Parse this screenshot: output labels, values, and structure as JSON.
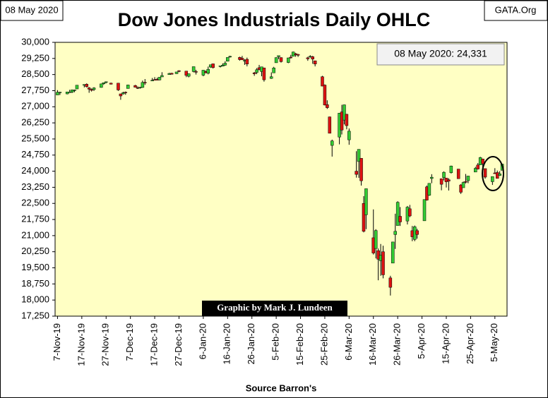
{
  "chart_data": {
    "type": "candlestick",
    "title": "Dow Jones Industrials Daily OHLC",
    "date_box": "08 May 2020",
    "site": "GATA.Org",
    "value_note": "08 May 2020: 24,331",
    "credit": "Graphic by Mark J. Lundeen",
    "xlabel": "Source Barron's",
    "up_color": "#33cc33",
    "down_color": "#dd1111",
    "background": "#ffffc4",
    "grid": false,
    "xlim": [
      "2019-11-06",
      "2020-05-10"
    ],
    "xticks": [
      {
        "value": "2019-11-07",
        "label": "7-Nov-19"
      },
      {
        "value": "2019-11-17",
        "label": "17-Nov-19"
      },
      {
        "value": "2019-11-27",
        "label": "27-Nov-19"
      },
      {
        "value": "2019-12-07",
        "label": "7-Dec-19"
      },
      {
        "value": "2019-12-17",
        "label": "17-Dec-19"
      },
      {
        "value": "2019-12-27",
        "label": "27-Dec-19"
      },
      {
        "value": "2020-01-06",
        "label": "6-Jan-20"
      },
      {
        "value": "2020-01-16",
        "label": "16-Jan-20"
      },
      {
        "value": "2020-01-26",
        "label": "26-Jan-20"
      },
      {
        "value": "2020-02-05",
        "label": "5-Feb-20"
      },
      {
        "value": "2020-02-15",
        "label": "15-Feb-20"
      },
      {
        "value": "2020-02-25",
        "label": "25-Feb-20"
      },
      {
        "value": "2020-03-06",
        "label": "6-Mar-20"
      },
      {
        "value": "2020-03-16",
        "label": "16-Mar-20"
      },
      {
        "value": "2020-03-26",
        "label": "26-Mar-20"
      },
      {
        "value": "2020-04-05",
        "label": "5-Apr-20"
      },
      {
        "value": "2020-04-15",
        "label": "15-Apr-20"
      },
      {
        "value": "2020-04-25",
        "label": "25-Apr-20"
      },
      {
        "value": "2020-05-05",
        "label": "5-May-20"
      }
    ],
    "ylim": [
      17250,
      30000
    ],
    "yticks": [
      {
        "value": 30000,
        "label": "30,000"
      },
      {
        "value": 29250,
        "label": "29,250"
      },
      {
        "value": 28500,
        "label": "28,500"
      },
      {
        "value": 27750,
        "label": "27,750"
      },
      {
        "value": 27000,
        "label": "27,000"
      },
      {
        "value": 26250,
        "label": "26,250"
      },
      {
        "value": 25500,
        "label": "25,500"
      },
      {
        "value": 24750,
        "label": "24,750"
      },
      {
        "value": 24000,
        "label": "24,000"
      },
      {
        "value": 23250,
        "label": "23,250"
      },
      {
        "value": 22500,
        "label": "22,500"
      },
      {
        "value": 21750,
        "label": "21,750"
      },
      {
        "value": 21000,
        "label": "21,000"
      },
      {
        "value": 20250,
        "label": "20,250"
      },
      {
        "value": 19500,
        "label": "19,500"
      },
      {
        "value": 18750,
        "label": "18,750"
      },
      {
        "value": 18000,
        "label": "18,000"
      },
      {
        "value": 17250,
        "label": "17,250"
      }
    ],
    "x": [
      "2019-11-07",
      "2019-11-08",
      "2019-11-11",
      "2019-11-12",
      "2019-11-13",
      "2019-11-14",
      "2019-11-15",
      "2019-11-18",
      "2019-11-19",
      "2019-11-20",
      "2019-11-21",
      "2019-11-22",
      "2019-11-25",
      "2019-11-26",
      "2019-11-27",
      "2019-11-29",
      "2019-12-02",
      "2019-12-03",
      "2019-12-04",
      "2019-12-05",
      "2019-12-06",
      "2019-12-09",
      "2019-12-10",
      "2019-12-11",
      "2019-12-12",
      "2019-12-13",
      "2019-12-16",
      "2019-12-17",
      "2019-12-18",
      "2019-12-19",
      "2019-12-20",
      "2019-12-23",
      "2019-12-24",
      "2019-12-26",
      "2019-12-27",
      "2019-12-30",
      "2019-12-31",
      "2020-01-02",
      "2020-01-03",
      "2020-01-06",
      "2020-01-07",
      "2020-01-08",
      "2020-01-09",
      "2020-01-10",
      "2020-01-13",
      "2020-01-14",
      "2020-01-15",
      "2020-01-16",
      "2020-01-17",
      "2020-01-21",
      "2020-01-22",
      "2020-01-23",
      "2020-01-24",
      "2020-01-27",
      "2020-01-28",
      "2020-01-29",
      "2020-01-30",
      "2020-01-31",
      "2020-02-03",
      "2020-02-04",
      "2020-02-05",
      "2020-02-06",
      "2020-02-07",
      "2020-02-10",
      "2020-02-11",
      "2020-02-12",
      "2020-02-13",
      "2020-02-14",
      "2020-02-18",
      "2020-02-19",
      "2020-02-20",
      "2020-02-21",
      "2020-02-24",
      "2020-02-25",
      "2020-02-26",
      "2020-02-27",
      "2020-02-28",
      "2020-03-02",
      "2020-03-03",
      "2020-03-04",
      "2020-03-05",
      "2020-03-06",
      "2020-03-09",
      "2020-03-10",
      "2020-03-11",
      "2020-03-12",
      "2020-03-13",
      "2020-03-16",
      "2020-03-17",
      "2020-03-18",
      "2020-03-19",
      "2020-03-20",
      "2020-03-23",
      "2020-03-24",
      "2020-03-25",
      "2020-03-26",
      "2020-03-27",
      "2020-03-30",
      "2020-03-31",
      "2020-04-01",
      "2020-04-02",
      "2020-04-03",
      "2020-04-06",
      "2020-04-07",
      "2020-04-08",
      "2020-04-09",
      "2020-04-13",
      "2020-04-14",
      "2020-04-15",
      "2020-04-16",
      "2020-04-17",
      "2020-04-20",
      "2020-04-21",
      "2020-04-22",
      "2020-04-23",
      "2020-04-24",
      "2020-04-27",
      "2020-04-28",
      "2020-04-29",
      "2020-04-30",
      "2020-05-01",
      "2020-05-04",
      "2020-05-05",
      "2020-05-06",
      "2020-05-07",
      "2020-05-08"
    ],
    "open": [
      27550,
      27650,
      27600,
      27690,
      27680,
      27760,
      27830,
      28000,
      28050,
      27880,
      27810,
      27800,
      27900,
      28070,
      28140,
      28100,
      28100,
      27600,
      27600,
      27680,
      27850,
      27990,
      27890,
      27900,
      27900,
      28140,
      28200,
      28270,
      28280,
      28250,
      28390,
      28500,
      28560,
      28540,
      28680,
      28660,
      28420,
      28640,
      28640,
      28470,
      28640,
      28560,
      28850,
      29000,
      28880,
      28890,
      28940,
      29120,
      29320,
      29300,
      29260,
      29140,
      29210,
      28580,
      28600,
      28820,
      28640,
      28810,
      28320,
      28580,
      29050,
      29330,
      29290,
      29060,
      29310,
      29350,
      29470,
      29440,
      29280,
      29330,
      29330,
      29140,
      28400,
      28010,
      27100,
      26530,
      25200,
      25590,
      26760,
      26380,
      26650,
      25460,
      24000,
      24450,
      24600,
      22500,
      21970,
      20900,
      20400,
      20300,
      19830,
      20250,
      19030,
      19720,
      21050,
      21470,
      21900,
      21680,
      22250,
      21230,
      20820,
      21230,
      21690,
      23270,
      22880,
      23660,
      23650,
      23700,
      23680,
      23600,
      23930,
      24100,
      23360,
      23230,
      23520,
      23560,
      23960,
      24290,
      24290,
      24570,
      24120,
      23510,
      23920,
      23940,
      23800,
      24040
    ],
    "high": [
      27775,
      27690,
      27700,
      27790,
      27800,
      27800,
      28010,
      28040,
      28090,
      27920,
      27850,
      27910,
      28070,
      28130,
      28175,
      28120,
      28110,
      27610,
      27700,
      27710,
      28030,
      28020,
      27950,
      27925,
      28220,
      28290,
      28340,
      28380,
      28350,
      28380,
      28610,
      28580,
      28580,
      28630,
      28700,
      28670,
      28550,
      28870,
      28720,
      28710,
      28690,
      28870,
      28960,
      29010,
      28910,
      29020,
      29120,
      29300,
      29375,
      29330,
      29370,
      29220,
      29290,
      28620,
      28800,
      28950,
      28860,
      28820,
      28600,
      28860,
      29300,
      29380,
      29300,
      29280,
      29420,
      29570,
      29510,
      29460,
      29330,
      29400,
      29370,
      29150,
      28440,
      28040,
      27300,
      26540,
      25470,
      26710,
      27090,
      27100,
      26670,
      25990,
      24930,
      25020,
      24600,
      22840,
      23190,
      22220,
      21300,
      20400,
      20610,
      20530,
      19130,
      20710,
      22020,
      22600,
      22330,
      22380,
      22430,
      21450,
      21470,
      21320,
      22680,
      23330,
      23430,
      23860,
      23650,
      23990,
      23680,
      23670,
      24260,
      24100,
      23400,
      23520,
      23870,
      23780,
      24200,
      24380,
      24670,
      24580,
      24120,
      23750,
      24140,
      24030,
      24000,
      24340
    ],
    "low": [
      27550,
      27550,
      27580,
      27660,
      27640,
      27680,
      27830,
      27900,
      27900,
      27650,
      27710,
      27740,
      27890,
      28020,
      28090,
      28040,
      27740,
      27325,
      27570,
      27560,
      27850,
      27900,
      27830,
      27840,
      27880,
      28020,
      28200,
      28240,
      28230,
      28230,
      28390,
      28490,
      28500,
      28530,
      28610,
      28380,
      28370,
      28600,
      28500,
      28420,
      28560,
      28510,
      28810,
      28780,
      28830,
      28880,
      28910,
      29110,
      29290,
      29150,
      29180,
      28950,
      28880,
      28440,
      28520,
      28700,
      28420,
      28170,
      28300,
      28580,
      29050,
      29220,
      29060,
      29030,
      29250,
      29350,
      29330,
      29320,
      29140,
      29290,
      29000,
      28880,
      27960,
      27060,
      26900,
      25760,
      24680,
      25250,
      25710,
      26180,
      25950,
      25230,
      23700,
      23690,
      23330,
      21150,
      21300,
      20120,
      19940,
      18920,
      19130,
      19010,
      18210,
      19720,
      20380,
      21470,
      21450,
      21520,
      21860,
      20740,
      20740,
      20860,
      21690,
      22630,
      22850,
      23440,
      23110,
      23570,
      23240,
      23100,
      23890,
      23650,
      22940,
      23230,
      23430,
      23440,
      23960,
      24080,
      24290,
      24170,
      23650,
      23360,
      23880,
      23660,
      23780,
      24040
    ],
    "close": [
      27675,
      27681,
      27691,
      27691,
      27784,
      27782,
      28005,
      28036,
      27934,
      27821,
      27766,
      27876,
      28066,
      28121,
      28164,
      28051,
      27783,
      27503,
      27650,
      27677,
      28015,
      27909,
      27881,
      27911,
      28132,
      28135,
      28235,
      28267,
      28239,
      28376,
      28455,
      28551,
      28515,
      28621,
      28645,
      28462,
      28538,
      28868,
      28634,
      28703,
      28583,
      28745,
      28956,
      28823,
      28907,
      28940,
      29030,
      29297,
      29348,
      29196,
      29186,
      29160,
      28990,
      28535,
      28723,
      28734,
      28859,
      28256,
      28399,
      28807,
      29290,
      29380,
      29102,
      29276,
      29276,
      29551,
      29423,
      29398,
      29232,
      29348,
      29219,
      28992,
      27961,
      27081,
      26957,
      25766,
      25409,
      26703,
      25917,
      27091,
      26121,
      25865,
      23851,
      25018,
      23553,
      21200,
      23185,
      20189,
      21237,
      19899,
      20087,
      19174,
      18592,
      20704,
      21200,
      22552,
      21637,
      22327,
      21917,
      20944,
      21413,
      21053,
      22680,
      22654,
      23434,
      23719,
      23390,
      23950,
      23505,
      23538,
      24242,
      23650,
      23019,
      23475,
      23516,
      23775,
      24134,
      24101,
      24634,
      24346,
      23724,
      23750,
      23883,
      23664,
      23876,
      24331
    ]
  }
}
